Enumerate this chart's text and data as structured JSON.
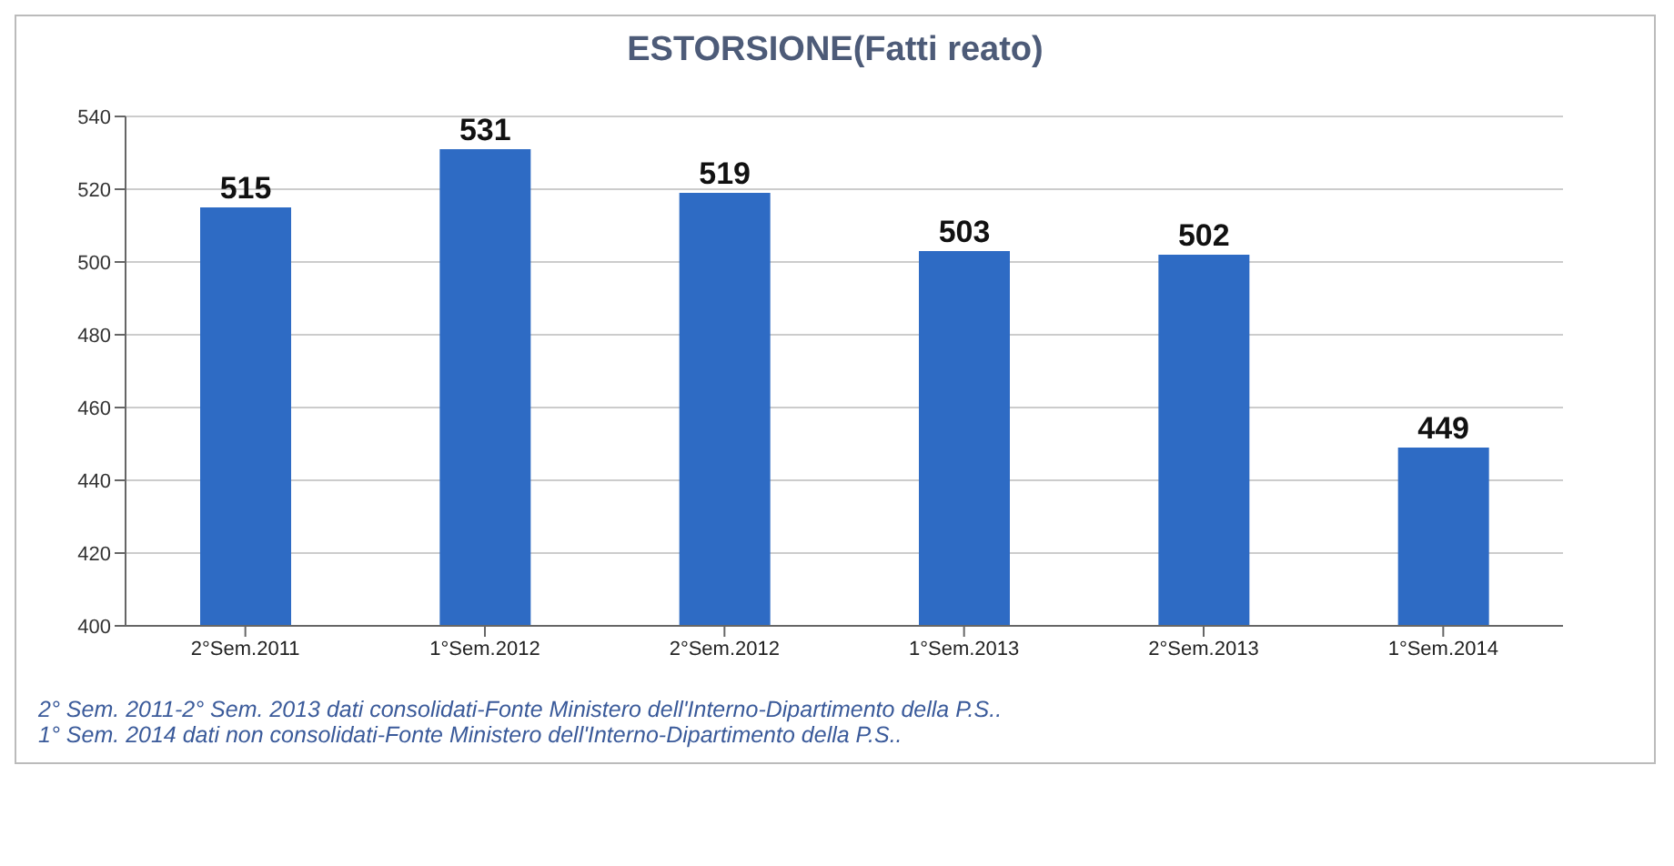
{
  "chart_data": {
    "type": "bar",
    "title": "ESTORSIONE(Fatti reato)",
    "categories": [
      "2°Sem.2011",
      "1°Sem.2012",
      "2°Sem.2012",
      "1°Sem.2013",
      "2°Sem.2013",
      "1°Sem.2014"
    ],
    "values": [
      515,
      531,
      519,
      503,
      502,
      449
    ],
    "color": "#2e6bc4",
    "ylim": [
      400,
      540
    ],
    "yticks": [
      400,
      420,
      440,
      460,
      480,
      500,
      520,
      540
    ],
    "grid": "y",
    "data_labels": true,
    "annotations": [
      "2° Sem. 2011-2° Sem. 2013 dati consolidati-Fonte Ministero dell'Interno-Dipartimento della P.S..",
      "1° Sem. 2014 dati non consolidati-Fonte Ministero dell'Interno-Dipartimento della P.S.."
    ]
  }
}
